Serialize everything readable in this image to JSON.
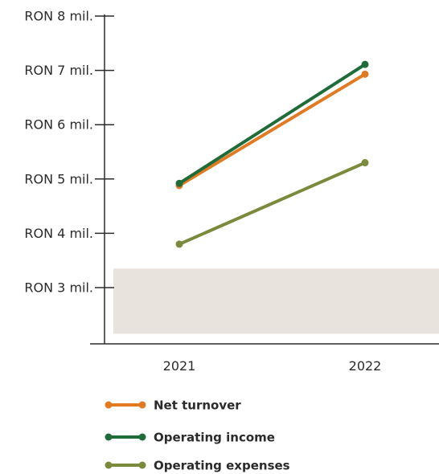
{
  "chart_data": {
    "type": "line",
    "title": "",
    "xlabel": "",
    "ylabel": "",
    "categories": [
      "2021",
      "2022"
    ],
    "ylim": [
      2,
      8.2
    ],
    "y_ticks": [
      {
        "value": 8,
        "label": "RON 8 mil."
      },
      {
        "value": 7,
        "label": "RON 7 mil."
      },
      {
        "value": 6,
        "label": "RON 6 mil."
      },
      {
        "value": 5,
        "label": "RON 5 mil."
      },
      {
        "value": 4,
        "label": "RON 4 mil."
      },
      {
        "value": 3,
        "label": "RON 3 mil."
      }
    ],
    "series": [
      {
        "name": "Net turnover",
        "color": "#e07b24",
        "values": [
          4.88,
          6.93
        ]
      },
      {
        "name": "Operating income",
        "color": "#1f6b3a",
        "values": [
          4.92,
          7.11
        ]
      },
      {
        "name": "Operating expenses",
        "color": "#7a8a3b",
        "values": [
          3.8,
          5.3
        ]
      }
    ],
    "background_band": {
      "from": 2.15,
      "to": 3.35,
      "color": "#e8e3dc"
    },
    "grid": false,
    "legend_position": "bottom"
  }
}
